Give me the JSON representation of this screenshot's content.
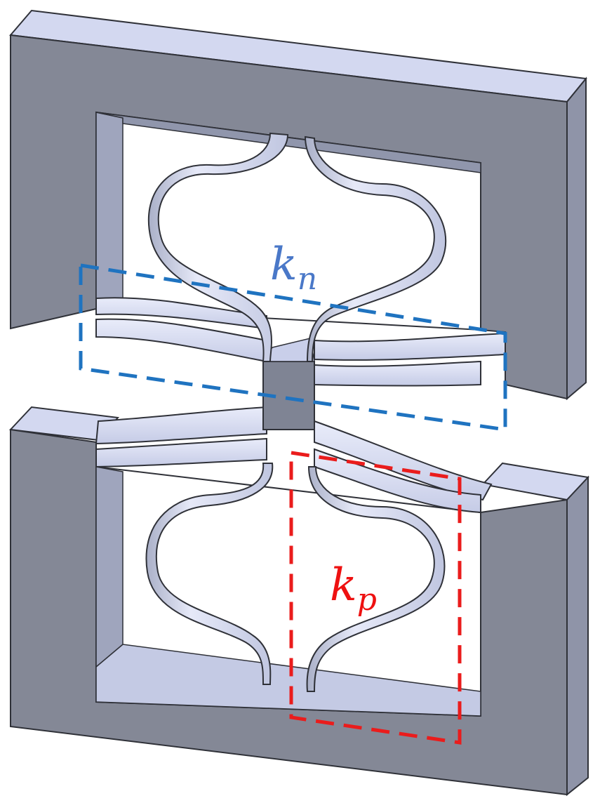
{
  "labels": {
    "kn": {
      "base": "k",
      "sub": "n"
    },
    "kp": {
      "base": "k",
      "sub": "p"
    }
  },
  "colors": {
    "frame_front": "#848896",
    "frame_top": "#d3d8f0",
    "frame_side": "#8f94a8",
    "cut_shadow": "#9fa5bd",
    "spring_light": "#e4e8f8",
    "spring_mid": "#c3c9e4",
    "spring_dark": "#8e94ab",
    "outline": "#2f3138",
    "kn_color": "#1f73c0",
    "kp_color": "#ea1c1c",
    "kn_text": "#4a78c8",
    "kp_text": "#ee1111",
    "background": "#ffffff"
  }
}
